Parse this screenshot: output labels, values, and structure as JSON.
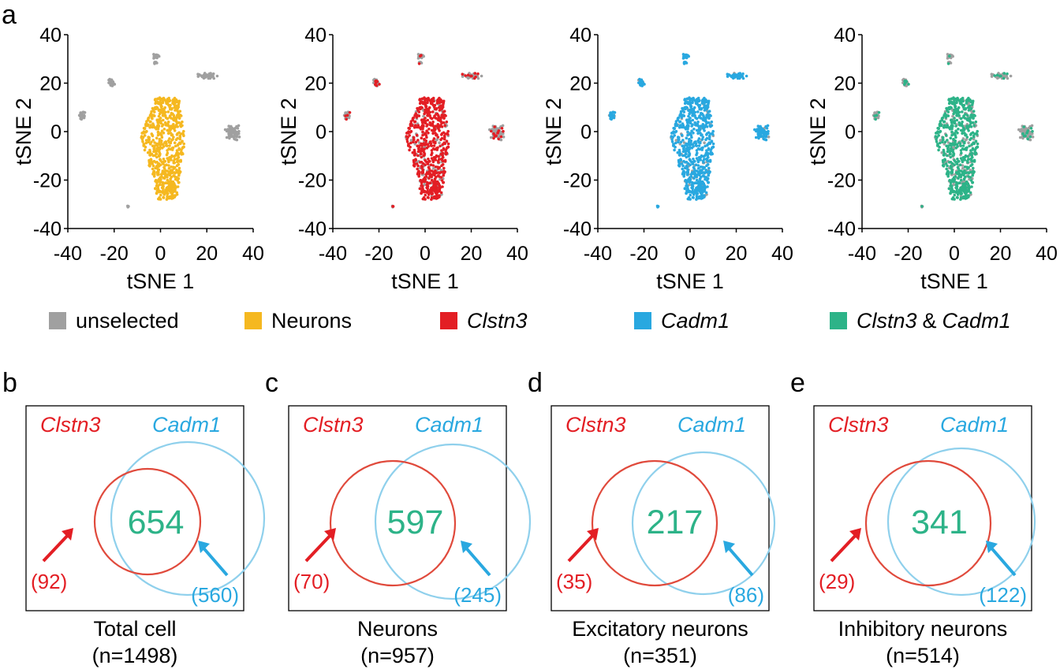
{
  "colors": {
    "unselected": "#a0a0a0",
    "neurons": "#f5b820",
    "clstn3": "#e31e24",
    "cadm1": "#29a8e0",
    "both": "#2db388",
    "clstn3_circle": "#e04a3c",
    "cadm1_circle": "#8fd0ec"
  },
  "panel_a": {
    "letter": "a",
    "xlabel": "tSNE 1",
    "ylabel": "tSNE 2",
    "xticks": [
      "-40",
      "-20",
      "0",
      "20",
      "40"
    ],
    "yticks": [
      "40",
      "20",
      "0",
      "-20",
      "-40"
    ],
    "legend": [
      {
        "label": "unselected",
        "color": "#a0a0a0",
        "italic": false
      },
      {
        "label": "Neurons",
        "color": "#f5b820",
        "italic": false
      },
      {
        "label": "Clstn3",
        "color": "#e31e24",
        "italic": true
      },
      {
        "label": "Cadm1",
        "color": "#29a8e0",
        "italic": true
      },
      {
        "label_a": "Clstn3",
        "label_amp": "&",
        "label_b": "Cadm1",
        "color": "#2db388",
        "italic": true
      }
    ]
  },
  "chart_data": [
    {
      "type": "scatter",
      "title": "Neurons",
      "xlabel": "tSNE 1",
      "ylabel": "tSNE 2",
      "xlim": [
        -40,
        40
      ],
      "ylim": [
        -40,
        40
      ],
      "highlight": "Neurons",
      "highlight_color": "#f5b820"
    },
    {
      "type": "scatter",
      "title": "Clstn3",
      "xlabel": "tSNE 1",
      "ylabel": "tSNE 2",
      "xlim": [
        -40,
        40
      ],
      "ylim": [
        -40,
        40
      ],
      "highlight": "Clstn3",
      "highlight_color": "#e31e24"
    },
    {
      "type": "scatter",
      "title": "Cadm1",
      "xlabel": "tSNE 1",
      "ylabel": "tSNE 2",
      "xlim": [
        -40,
        40
      ],
      "ylim": [
        -40,
        40
      ],
      "highlight": "Cadm1",
      "highlight_color": "#29a8e0"
    },
    {
      "type": "scatter",
      "title": "Clstn3 & Cadm1",
      "xlabel": "tSNE 1",
      "ylabel": "tSNE 2",
      "xlim": [
        -40,
        40
      ],
      "ylim": [
        -40,
        40
      ],
      "highlight": "Clstn3 & Cadm1",
      "highlight_color": "#2db388"
    },
    {
      "type": "venn",
      "panel": "b",
      "set_a": "Clstn3",
      "set_b": "Cadm1",
      "overlap": 654,
      "only_a": "(92)",
      "only_b": "(560)",
      "caption": "Total cell",
      "n": "(n=1498)"
    },
    {
      "type": "venn",
      "panel": "c",
      "set_a": "Clstn3",
      "set_b": "Cadm1",
      "overlap": 597,
      "only_a": "(70)",
      "only_b": "(245)",
      "caption": "Neurons",
      "n": "(n=957)"
    },
    {
      "type": "venn",
      "panel": "d",
      "set_a": "Clstn3",
      "set_b": "Cadm1",
      "overlap": 217,
      "only_a": "(35)",
      "only_b": "(86)",
      "caption": "Excitatory neurons",
      "n": "(n=351)"
    },
    {
      "type": "venn",
      "panel": "e",
      "set_a": "Clstn3",
      "set_b": "Cadm1",
      "overlap": 341,
      "only_a": "(29)",
      "only_b": "(122)",
      "caption": "Inhibitory neurons",
      "n": "(n=514)"
    }
  ],
  "venn_letters": [
    "b",
    "c",
    "d",
    "e"
  ]
}
